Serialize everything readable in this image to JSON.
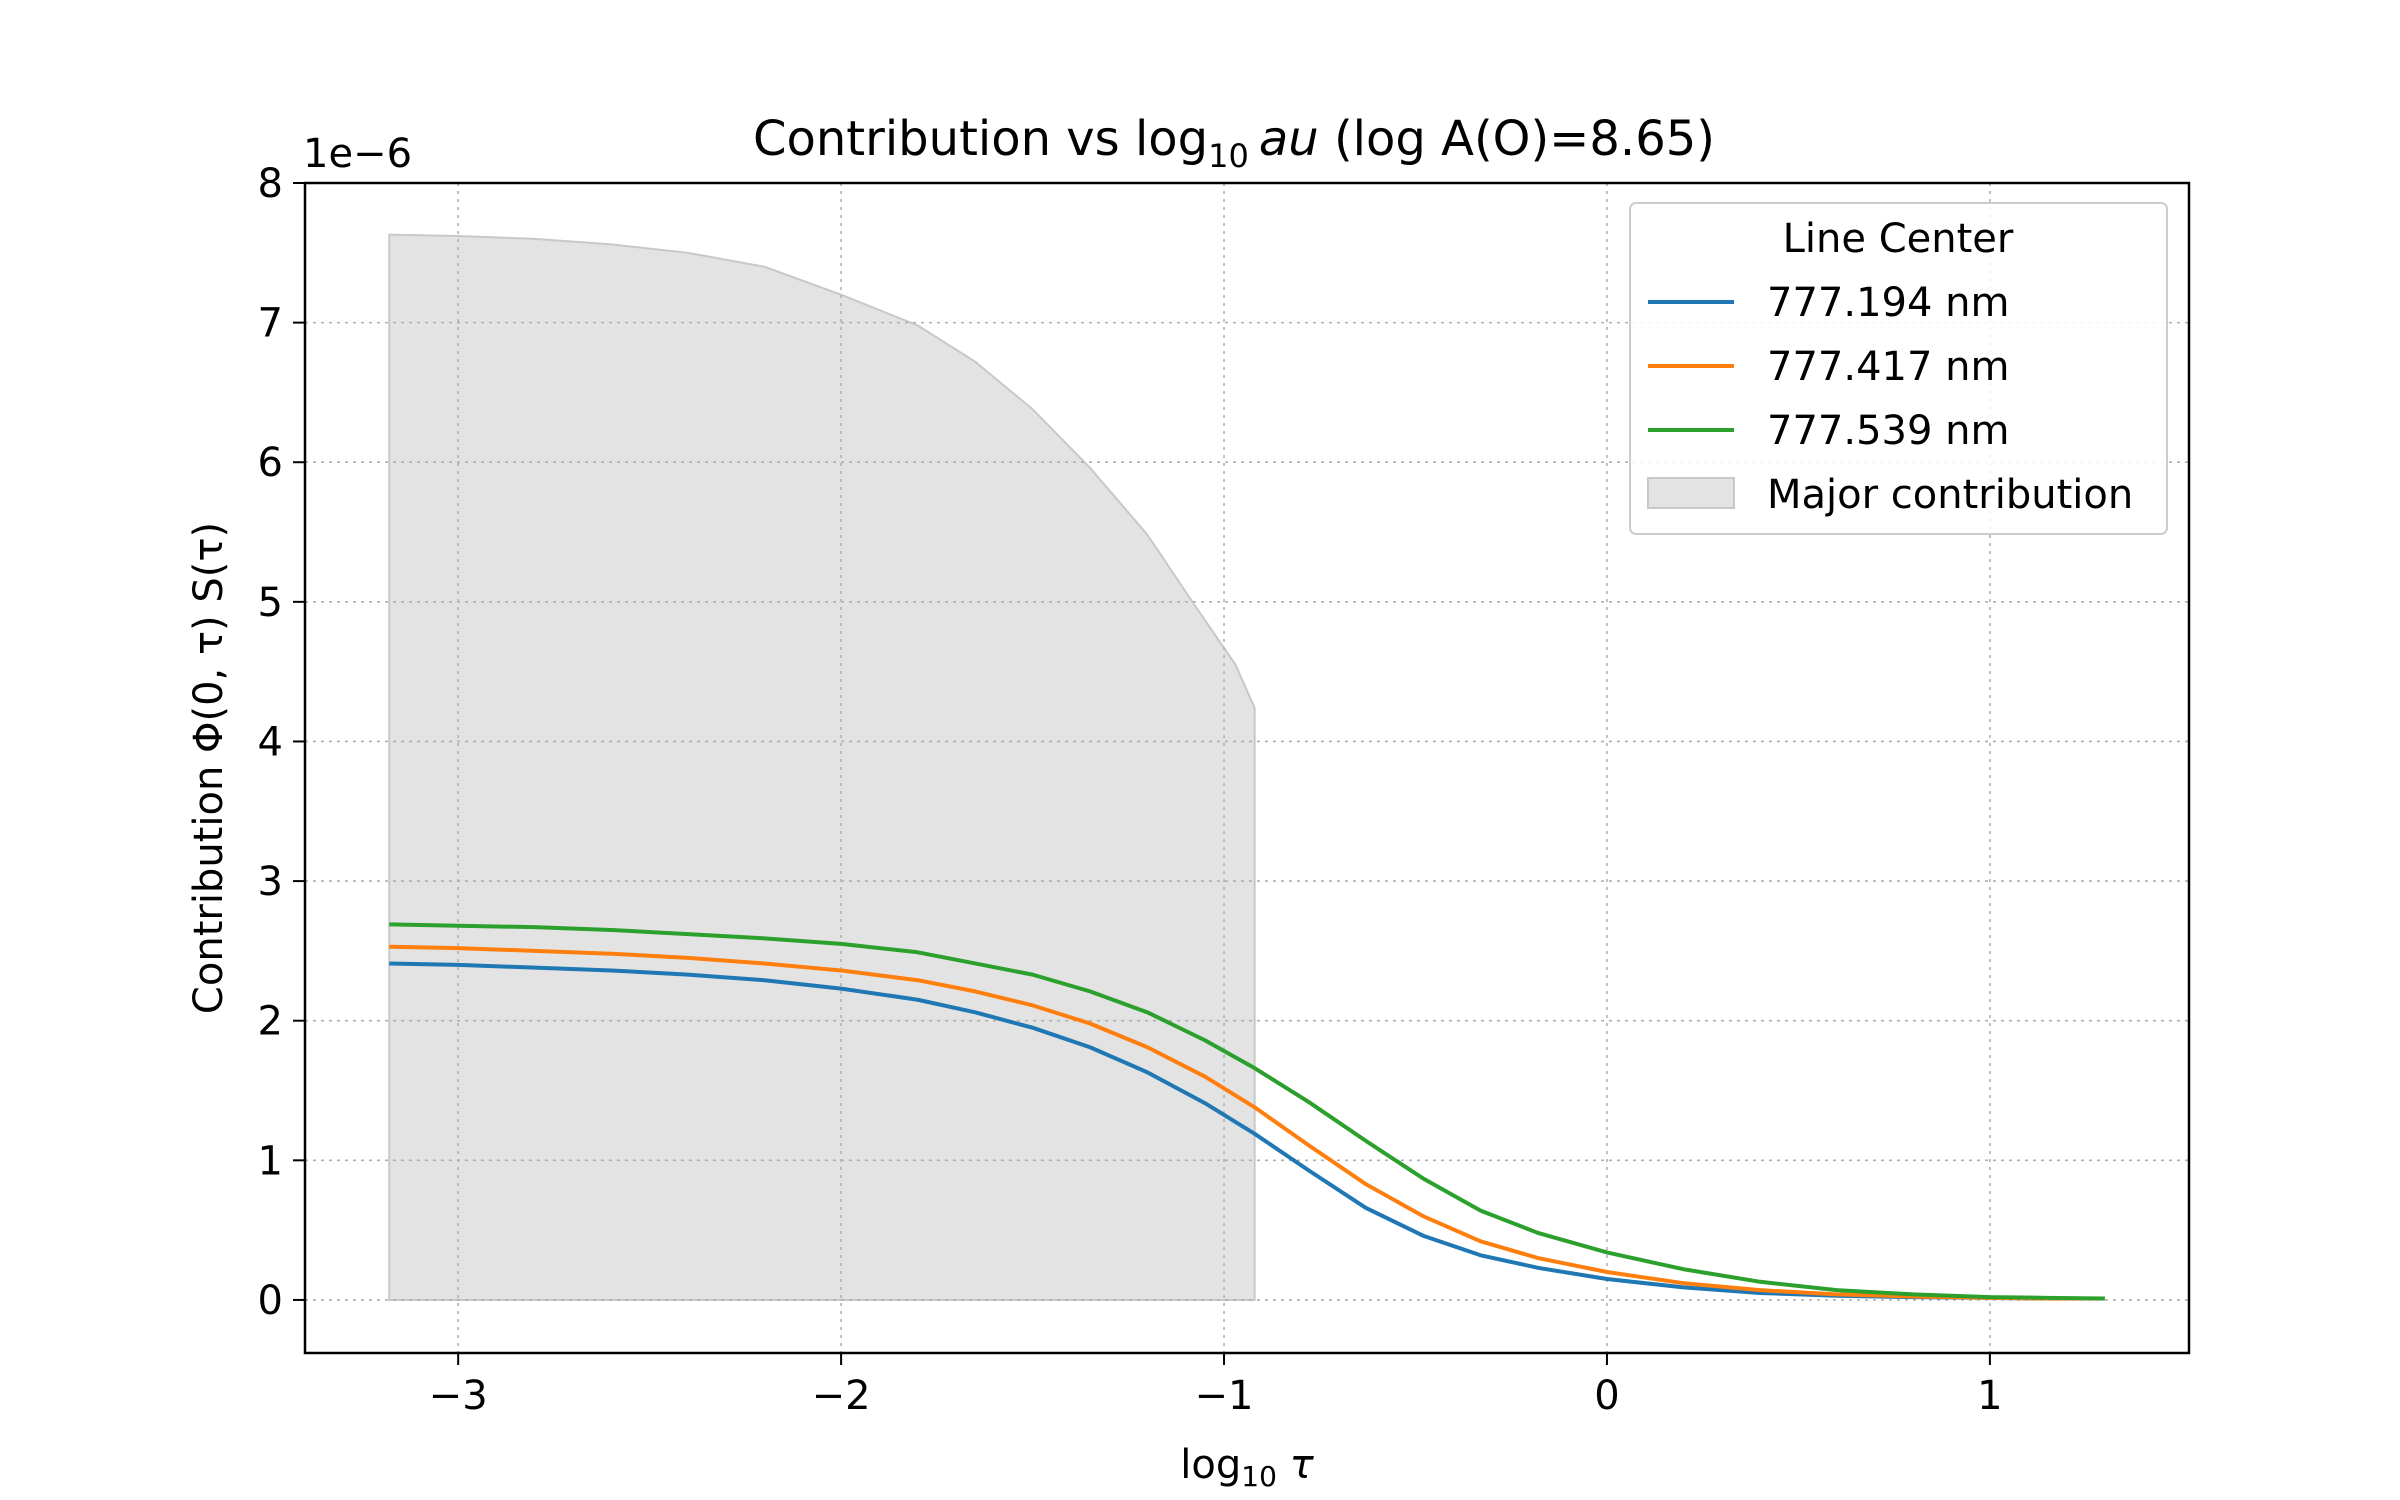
{
  "chart_data": {
    "type": "line",
    "title": {
      "prefix": "Contribution vs log",
      "sub": "10",
      "math": "au",
      "suffix": " (log A(O)=8.65)"
    },
    "xlabel": {
      "prefix": "log",
      "sub": "10",
      "math": " τ"
    },
    "ylabel": "Contribution Φ(0, τ) S(τ)",
    "y_offset_label": "1e−6",
    "xlim": [
      -3.4,
      1.52
    ],
    "ylim": [
      -0.38,
      8.0
    ],
    "y_scale_factor": 1e-06,
    "xticks": [
      {
        "v": -3,
        "label": "−3"
      },
      {
        "v": -2,
        "label": "−2"
      },
      {
        "v": -1,
        "label": "−1"
      },
      {
        "v": 0,
        "label": "0"
      },
      {
        "v": 1,
        "label": "1"
      }
    ],
    "yticks": [
      {
        "v": 0,
        "label": "0"
      },
      {
        "v": 1,
        "label": "1"
      },
      {
        "v": 2,
        "label": "2"
      },
      {
        "v": 3,
        "label": "3"
      },
      {
        "v": 4,
        "label": "4"
      },
      {
        "v": 5,
        "label": "5"
      },
      {
        "v": 6,
        "label": "6"
      },
      {
        "v": 7,
        "label": "7"
      },
      {
        "v": 8,
        "label": "8"
      }
    ],
    "grid": true,
    "legend": {
      "title": "Line Center",
      "placement": "top-right"
    },
    "series": [
      {
        "name": "777.194 nm",
        "color": "#1f77b4",
        "x": [
          -3.18,
          -3.0,
          -2.8,
          -2.6,
          -2.4,
          -2.2,
          -2.0,
          -1.8,
          -1.65,
          -1.5,
          -1.35,
          -1.2,
          -1.05,
          -0.92,
          -0.78,
          -0.63,
          -0.48,
          -0.33,
          -0.18,
          0.0,
          0.2,
          0.4,
          0.6,
          0.8,
          1.0,
          1.15,
          1.3
        ],
        "y": [
          2.41,
          2.4,
          2.38,
          2.36,
          2.33,
          2.29,
          2.23,
          2.15,
          2.06,
          1.95,
          1.81,
          1.63,
          1.41,
          1.19,
          0.93,
          0.66,
          0.46,
          0.32,
          0.23,
          0.15,
          0.09,
          0.05,
          0.03,
          0.02,
          0.015,
          0.01,
          0.01
        ]
      },
      {
        "name": "777.417 nm",
        "color": "#ff7f0e",
        "x": [
          -3.18,
          -3.0,
          -2.8,
          -2.6,
          -2.4,
          -2.2,
          -2.0,
          -1.8,
          -1.65,
          -1.5,
          -1.35,
          -1.2,
          -1.05,
          -0.92,
          -0.78,
          -0.63,
          -0.48,
          -0.33,
          -0.18,
          0.0,
          0.2,
          0.4,
          0.6,
          0.8,
          1.0,
          1.15,
          1.3
        ],
        "y": [
          2.53,
          2.52,
          2.5,
          2.48,
          2.45,
          2.41,
          2.36,
          2.29,
          2.21,
          2.11,
          1.98,
          1.81,
          1.6,
          1.38,
          1.11,
          0.83,
          0.6,
          0.42,
          0.3,
          0.2,
          0.12,
          0.07,
          0.04,
          0.025,
          0.015,
          0.01,
          0.01
        ]
      },
      {
        "name": "777.539 nm",
        "color": "#2ca02c",
        "x": [
          -3.18,
          -3.0,
          -2.8,
          -2.6,
          -2.4,
          -2.2,
          -2.0,
          -1.8,
          -1.65,
          -1.5,
          -1.35,
          -1.2,
          -1.05,
          -0.92,
          -0.78,
          -0.63,
          -0.48,
          -0.33,
          -0.18,
          0.0,
          0.2,
          0.4,
          0.6,
          0.8,
          1.0,
          1.15,
          1.3
        ],
        "y": [
          2.69,
          2.68,
          2.67,
          2.65,
          2.62,
          2.59,
          2.55,
          2.49,
          2.41,
          2.33,
          2.21,
          2.06,
          1.86,
          1.66,
          1.42,
          1.14,
          0.87,
          0.64,
          0.48,
          0.34,
          0.22,
          0.13,
          0.07,
          0.04,
          0.02,
          0.015,
          0.01
        ]
      }
    ],
    "area": {
      "name": "Major contribution",
      "color": "#e3e3e3",
      "edge": "#c8c8c8",
      "x": [
        -3.18,
        -3.0,
        -2.8,
        -2.6,
        -2.4,
        -2.2,
        -2.0,
        -1.8,
        -1.65,
        -1.5,
        -1.35,
        -1.2,
        -1.08,
        -0.97,
        -0.92
      ],
      "y": [
        7.63,
        7.62,
        7.6,
        7.56,
        7.5,
        7.4,
        7.2,
        6.98,
        6.72,
        6.38,
        5.96,
        5.48,
        4.99,
        4.55,
        4.24
      ]
    }
  }
}
